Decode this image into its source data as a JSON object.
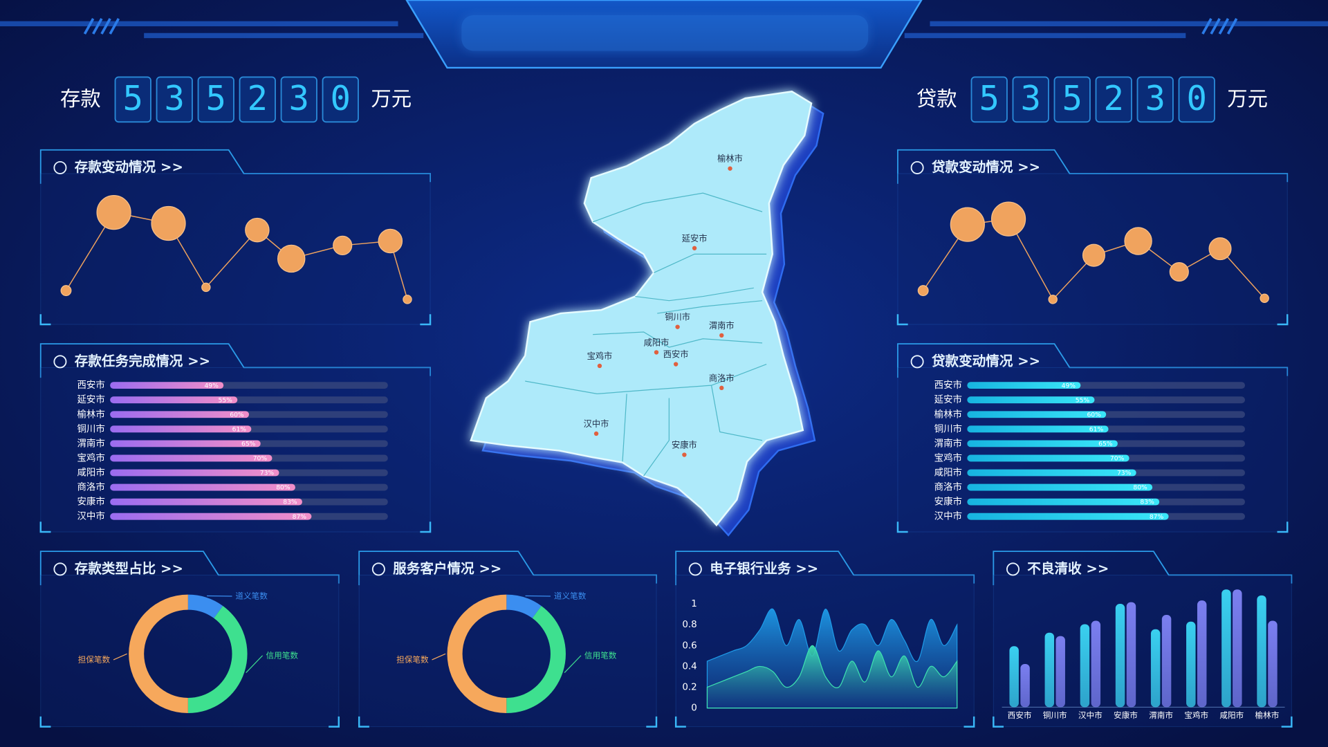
{
  "counters": [
    {
      "label": "存款",
      "digits": [
        "5",
        "3",
        "5",
        "2",
        "3",
        "0"
      ],
      "unit": "万元"
    },
    {
      "label": "贷款",
      "digits": [
        "5",
        "3",
        "5",
        "2",
        "3",
        "0"
      ],
      "unit": "万元"
    }
  ],
  "map": {
    "cities": [
      "榆林市",
      "延安市",
      "铜川市",
      "渭南市",
      "宝鸡市",
      "咸阳市",
      "西安市",
      "商洛市",
      "汉中市",
      "安康市"
    ]
  },
  "chart_data": [
    {
      "type": "bubble",
      "title": "存款变动情况 >>",
      "x": [
        0,
        14,
        30,
        41,
        56,
        66,
        81,
        95,
        100
      ],
      "values": [
        13,
        84,
        74,
        16,
        68,
        42,
        54,
        58,
        5
      ],
      "sizes": [
        6,
        20,
        20,
        5,
        14,
        16,
        11,
        14,
        5
      ],
      "xlim": [
        0,
        100
      ],
      "ylim": [
        0,
        100
      ],
      "color": "#f0a35e"
    },
    {
      "type": "hbar",
      "title": "存款任务完成情况 >>",
      "categories": [
        "西安市",
        "延安市",
        "榆林市",
        "铜川市",
        "渭南市",
        "宝鸡市",
        "咸阳市",
        "商洛市",
        "安康市",
        "汉中市"
      ],
      "values": [
        49,
        55,
        60,
        61,
        65,
        70,
        73,
        80,
        83,
        87
      ],
      "value_labels": [
        "49%",
        "55%",
        "60%",
        "61%",
        "65%",
        "70%",
        "73%",
        "80%",
        "83%",
        "87%"
      ],
      "xlim": [
        0,
        120
      ],
      "colors": [
        "#9b6cf0",
        "#f28ec8"
      ]
    },
    {
      "type": "bubble",
      "title": "贷款变动情况 >>",
      "x": [
        0,
        13,
        25,
        38,
        50,
        63,
        75,
        87,
        100
      ],
      "values": [
        13,
        73,
        78,
        5,
        45,
        58,
        30,
        51,
        6
      ],
      "sizes": [
        6,
        20,
        20,
        5,
        13,
        16,
        11,
        13,
        5
      ],
      "xlim": [
        0,
        100
      ],
      "ylim": [
        0,
        100
      ],
      "color": "#f0a35e"
    },
    {
      "type": "hbar",
      "title": "贷款变动情况 >>",
      "categories": [
        "西安市",
        "延安市",
        "榆林市",
        "铜川市",
        "渭南市",
        "宝鸡市",
        "咸阳市",
        "商洛市",
        "安康市",
        "汉中市"
      ],
      "values": [
        49,
        55,
        60,
        61,
        65,
        70,
        73,
        80,
        83,
        87
      ],
      "value_labels": [
        "49%",
        "55%",
        "60%",
        "61%",
        "65%",
        "70%",
        "73%",
        "80%",
        "83%",
        "87%"
      ],
      "xlim": [
        0,
        120
      ],
      "colors": [
        "#17b4e0",
        "#3ae6f8"
      ]
    },
    {
      "type": "donut",
      "title": "存款类型占比 >>",
      "categories": [
        "道义笔数",
        "信用笔数",
        "担保笔数"
      ],
      "values": [
        10,
        40,
        50
      ],
      "colors": [
        "#3b8ef0",
        "#3ee08f",
        "#f6a85c"
      ]
    },
    {
      "type": "donut",
      "title": "服务客户情况 >>",
      "categories": [
        "道义笔数",
        "信用笔数",
        "担保笔数"
      ],
      "values": [
        10,
        40,
        50
      ],
      "colors": [
        "#3b8ef0",
        "#3ee08f",
        "#f6a85c"
      ]
    },
    {
      "type": "area",
      "title": "电子银行业务 >>",
      "categories": [
        null,
        null,
        null,
        null,
        null,
        null,
        null,
        null,
        null,
        null,
        null,
        null,
        null,
        null,
        null,
        null,
        null,
        null,
        null,
        null
      ],
      "series": [
        {
          "color": "#1e9be8",
          "values": [
            0.45,
            0.5,
            0.55,
            0.6,
            0.75,
            0.95,
            0.6,
            0.85,
            0.5,
            0.95,
            0.55,
            0.75,
            0.8,
            0.6,
            0.85,
            0.65,
            0.45,
            0.85,
            0.6,
            0.8
          ]
        },
        {
          "color": "#3de0b0",
          "values": [
            0.2,
            0.25,
            0.3,
            0.35,
            0.4,
            0.35,
            0.2,
            0.3,
            0.6,
            0.3,
            0.2,
            0.45,
            0.25,
            0.55,
            0.3,
            0.5,
            0.2,
            0.4,
            0.3,
            0.45
          ]
        }
      ],
      "ylim": [
        0,
        1
      ],
      "yticks": [
        0,
        0.2,
        0.4,
        0.6,
        0.8,
        1
      ]
    },
    {
      "type": "bar",
      "title": "不良清收 >>",
      "categories": [
        "西安市",
        "铜川市",
        "汉中市",
        "安康市",
        "渭南市",
        "宝鸡市",
        "咸阳市",
        "榆林市"
      ],
      "series": [
        {
          "color": "#3ad0f0",
          "values": [
            72,
            88,
            98,
            122,
            92,
            101,
            139,
            132
          ]
        },
        {
          "color": "#7b7ff0",
          "values": [
            51,
            84,
            102,
            124,
            109,
            126,
            139,
            102
          ]
        }
      ],
      "ylim": [
        0,
        140
      ]
    }
  ]
}
